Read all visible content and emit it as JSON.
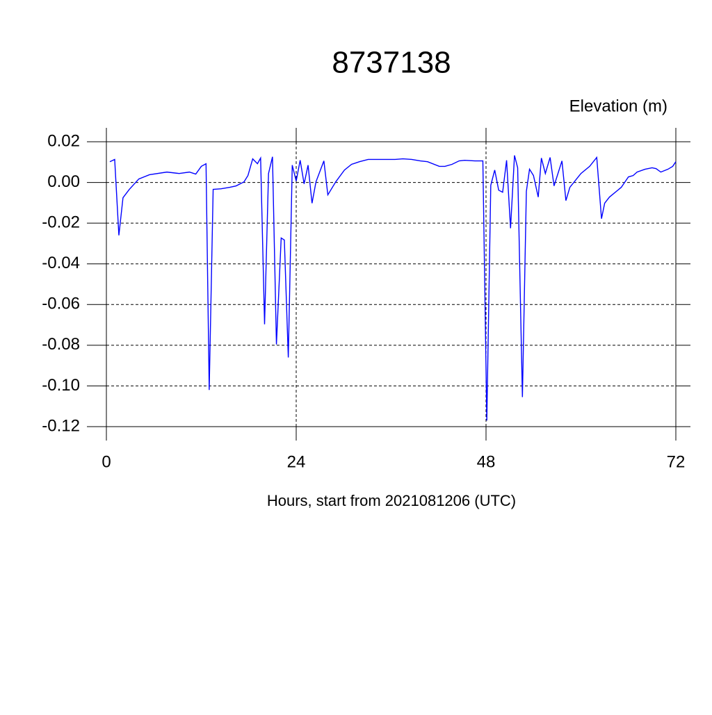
{
  "chart_data": {
    "type": "line",
    "title": "8737138",
    "ylabel": "Elevation (m)",
    "xlabel": "Hours, start from 2021081206 (UTC)",
    "xlim": [
      0,
      72
    ],
    "ylim": [
      -0.12,
      0.02
    ],
    "xticks": [
      0,
      24,
      48,
      72
    ],
    "yticks": [
      {
        "value": -0.12,
        "label": "-0.12"
      },
      {
        "value": -0.1,
        "label": "-0.10"
      },
      -0.08,
      -0.06,
      -0.04,
      -0.02,
      {
        "value": 0,
        "label": "0.00"
      },
      0.02
    ],
    "grid": true,
    "series": [
      {
        "color": "#0000ff",
        "x": [
          0.44,
          1.05,
          1.58,
          2.1,
          2.9,
          4.1,
          5.45,
          7.65,
          9.2,
          10.5,
          11.3,
          12,
          12.6,
          13.0,
          13.5,
          14.5,
          15.6,
          16.4,
          17.4,
          17.9,
          18.5,
          19.1,
          19.5,
          20.0,
          20.5,
          21.0,
          21.5,
          22.1,
          22.5,
          23.0,
          23.5,
          24.0,
          24.5,
          25.0,
          25.5,
          26.0,
          26.5,
          27.5,
          28.0,
          29.0,
          30.1,
          31.0,
          32.0,
          33.1,
          34.5,
          36.5,
          37.5,
          38.6,
          39.7,
          40.6,
          42.1,
          42.8,
          43.7,
          44.6,
          45.3,
          46.6,
          47.6,
          48.1,
          48.6,
          49.1,
          49.6,
          50.1,
          50.6,
          51.1,
          51.6,
          52.0,
          52.6,
          53.1,
          53.5,
          54.0,
          54.6,
          55.0,
          55.5,
          56.1,
          56.6,
          57.6,
          58.1,
          58.6,
          60.0,
          61.1,
          62.0,
          62.6,
          63.0,
          63.6,
          65.1,
          66.0,
          66.6,
          67.1,
          68.1,
          69.0,
          69.5,
          70.1,
          71.0,
          71.6,
          72.0
        ],
        "values": [
          0.0102,
          0.0113,
          -0.026,
          -0.0075,
          -0.0034,
          0.0017,
          0.0038,
          0.0051,
          0.0044,
          0.0051,
          0.0041,
          0.0079,
          0.0092,
          -0.102,
          -0.0034,
          -0.0031,
          -0.0024,
          -0.0017,
          0.0003,
          0.0034,
          0.0116,
          0.0092,
          0.012,
          -0.0697,
          0.0044,
          0.0126,
          -0.0796,
          -0.0273,
          -0.0283,
          -0.086,
          0.0085,
          0.0007,
          0.0109,
          -0.0007,
          0.0085,
          -0.0102,
          0.0003,
          0.0106,
          -0.0061,
          0.0003,
          0.0061,
          0.0089,
          0.0102,
          0.0113,
          0.0113,
          0.0113,
          0.0116,
          0.0113,
          0.0106,
          0.0102,
          0.0079,
          0.0079,
          0.0089,
          0.0106,
          0.0109,
          0.0106,
          0.0106,
          -0.117,
          -0.0014,
          0.0061,
          -0.0038,
          -0.0048,
          0.0109,
          -0.0225,
          0.0133,
          0.0072,
          -0.1055,
          -0.0044,
          0.0065,
          0.0034,
          -0.0072,
          0.012,
          0.0044,
          0.0123,
          -0.0017,
          0.0106,
          -0.0089,
          -0.0024,
          0.0044,
          0.0079,
          0.0123,
          -0.0178,
          -0.0102,
          -0.0072,
          -0.0024,
          0.0027,
          0.0034,
          0.0051,
          0.0065,
          0.0072,
          0.0068,
          0.0051,
          0.0065,
          0.0079,
          0.0102
        ]
      }
    ]
  }
}
